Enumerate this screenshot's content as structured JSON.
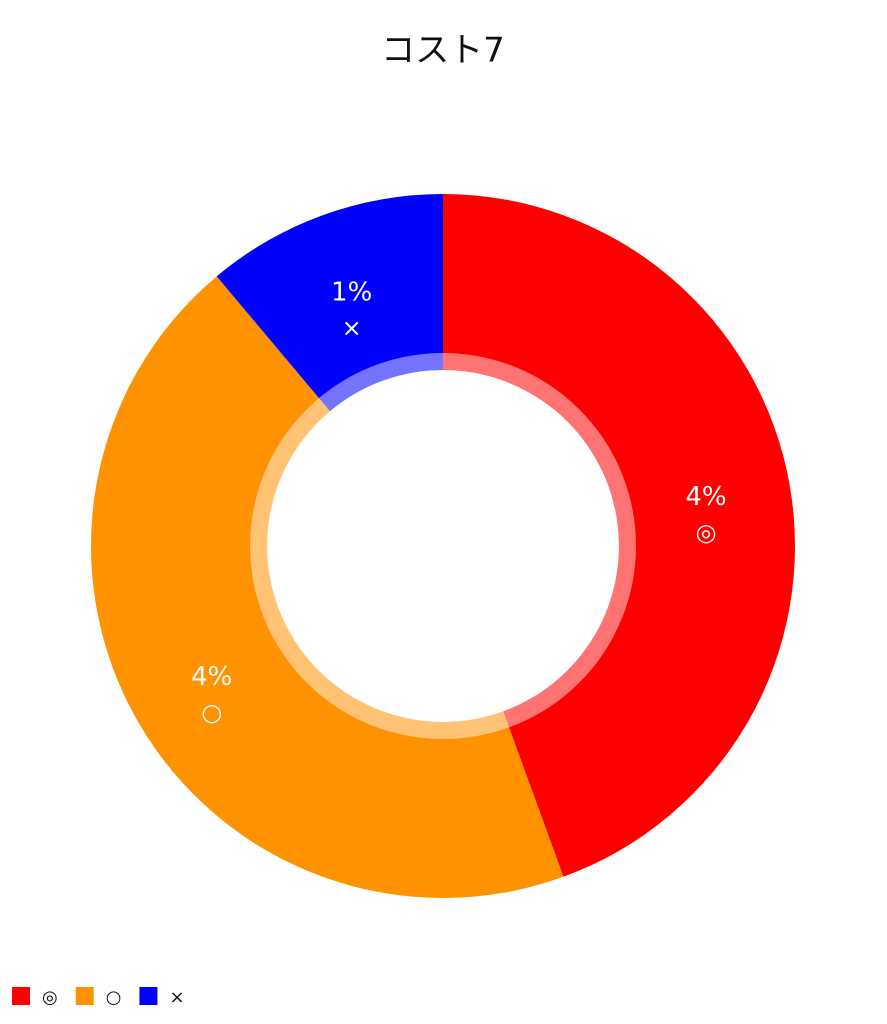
{
  "chart_data": {
    "type": "donut",
    "title": "コスト7",
    "categories": [
      "◎",
      "○",
      "×"
    ],
    "values": [
      4,
      4,
      1
    ],
    "value_labels": [
      "4%",
      "4%",
      "1%"
    ],
    "colors": [
      "#ff0000",
      "#ff9200",
      "#0000ff"
    ]
  }
}
